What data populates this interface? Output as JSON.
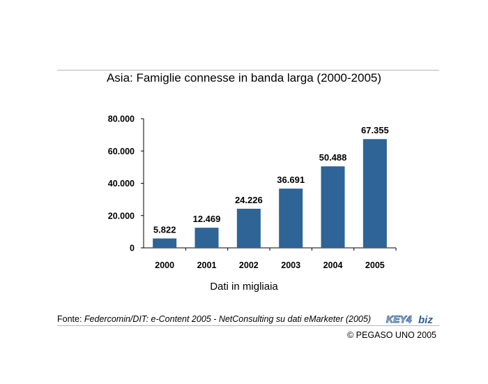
{
  "source": {
    "prefix": "Fonte: ",
    "text": "Federcomin/DIT: e-Content 2005 - NetConsulting su dati eMarketer (2005)"
  },
  "logo": {
    "text_key": "KEY4",
    "text_biz": "biz"
  },
  "copyright": "© PEGASO UNO 2005",
  "colors": {
    "bar": "#2e6496",
    "axis": "#000000",
    "rule": "#b5b5b5"
  },
  "chart_data": {
    "type": "bar",
    "title": "Asia: Famiglie connesse in banda larga (2000-2005)",
    "xlabel": "Dati in migliaia",
    "ylabel": "",
    "categories": [
      "2000",
      "2001",
      "2002",
      "2003",
      "2004",
      "2005"
    ],
    "values": [
      5822,
      12469,
      24226,
      36691,
      50488,
      67355
    ],
    "value_labels": [
      "5.822",
      "12.469",
      "24.226",
      "36.691",
      "50.488",
      "67.355"
    ],
    "ylim": [
      0,
      80000
    ],
    "yticks": [
      0,
      20000,
      40000,
      60000,
      80000
    ],
    "ytick_labels": [
      "0",
      "20.000",
      "40.000",
      "60.000",
      "80.000"
    ],
    "grid": false,
    "legend": "none"
  }
}
